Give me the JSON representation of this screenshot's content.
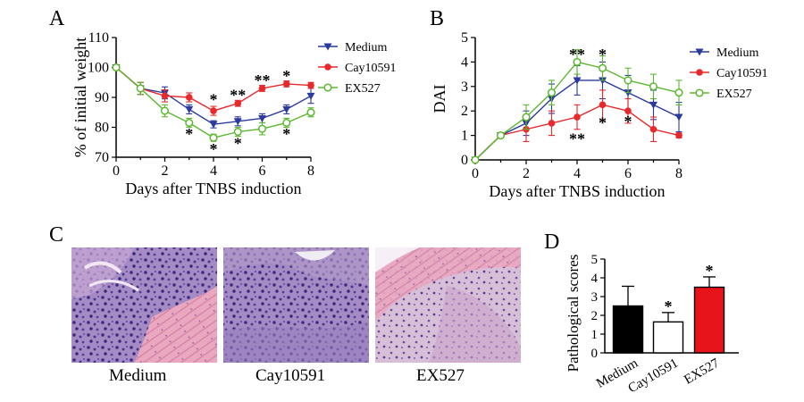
{
  "panels": {
    "A": "A",
    "B": "B",
    "C": "C",
    "D": "D"
  },
  "colors": {
    "medium": "#2b3a9e",
    "cay10591": "#e8282b",
    "ex527": "#5cb82f",
    "d_medium": "#000000",
    "d_cay": "#ffffff",
    "d_ex527": "#e8141c"
  },
  "chart_data": [
    {
      "id": "A",
      "type": "line",
      "xlabel": "Days after TNBS induction",
      "ylabel": "% of initial weight",
      "xlim": [
        0,
        8
      ],
      "ylim": [
        70,
        110
      ],
      "xticks": [
        0,
        2,
        4,
        6,
        8
      ],
      "yticks": [
        70,
        80,
        90,
        100,
        110
      ],
      "legend_position": "right",
      "series": [
        {
          "name": "Medium",
          "marker": "triangle-down",
          "x": [
            0,
            1,
            2,
            3,
            4,
            5,
            6,
            7,
            8
          ],
          "y": [
            100,
            93,
            91.5,
            86,
            81,
            82,
            83,
            86,
            90.5
          ],
          "err": [
            0,
            2,
            2,
            1.5,
            1.2,
            1.5,
            1.5,
            1.5,
            2.5
          ]
        },
        {
          "name": "Cay10591",
          "marker": "circle-filled",
          "x": [
            0,
            1,
            2,
            3,
            4,
            5,
            6,
            7,
            8
          ],
          "y": [
            100,
            93,
            90.5,
            90,
            85.5,
            88,
            93,
            94.5,
            94
          ],
          "err": [
            0,
            2,
            2,
            1.5,
            1.5,
            1,
            1,
            1,
            1
          ]
        },
        {
          "name": "EX527",
          "marker": "circle-open",
          "x": [
            0,
            1,
            2,
            3,
            4,
            5,
            6,
            7,
            8
          ],
          "y": [
            100,
            93,
            85.5,
            81.5,
            76.5,
            78.5,
            79.5,
            81.5,
            85
          ],
          "err": [
            0,
            2,
            2,
            1.5,
            1.2,
            1.5,
            2,
            1.5,
            1.5
          ]
        }
      ],
      "annotations": [
        {
          "x": 3,
          "y": 78,
          "text": "*"
        },
        {
          "x": 4,
          "y": 89.5,
          "text": "*"
        },
        {
          "x": 4,
          "y": 73,
          "text": "*"
        },
        {
          "x": 5,
          "y": 91,
          "text": "**"
        },
        {
          "x": 5,
          "y": 75,
          "text": "*"
        },
        {
          "x": 6,
          "y": 96,
          "text": "**"
        },
        {
          "x": 7,
          "y": 97.5,
          "text": "*"
        },
        {
          "x": 7,
          "y": 78,
          "text": "*"
        }
      ]
    },
    {
      "id": "B",
      "type": "line",
      "xlabel": "Days after TNBS induction",
      "ylabel": "DAI",
      "xlim": [
        0,
        8
      ],
      "ylim": [
        0,
        5
      ],
      "xticks": [
        0,
        2,
        4,
        6,
        8
      ],
      "yticks": [
        0,
        1,
        2,
        3,
        4,
        5
      ],
      "legend_position": "right",
      "series": [
        {
          "name": "Medium",
          "marker": "triangle-down",
          "x": [
            0,
            1,
            2,
            3,
            4,
            5,
            6,
            7,
            8
          ],
          "y": [
            0,
            1,
            1.5,
            2.5,
            3.25,
            3.25,
            2.75,
            2.25,
            1.75
          ],
          "err": [
            0,
            0.1,
            0.5,
            0.6,
            0.6,
            0.75,
            0.7,
            0.6,
            0.6
          ]
        },
        {
          "name": "Cay10591",
          "marker": "circle-filled",
          "x": [
            0,
            1,
            2,
            3,
            4,
            5,
            6,
            7,
            8
          ],
          "y": [
            0,
            1,
            1.25,
            1.5,
            1.75,
            2.25,
            2,
            1.25,
            1
          ],
          "err": [
            0,
            0.1,
            0.5,
            0.5,
            0.5,
            0.6,
            0.5,
            0.5,
            0.1
          ]
        },
        {
          "name": "EX527",
          "marker": "circle-open",
          "x": [
            0,
            1,
            2,
            3,
            4,
            5,
            6,
            7,
            8
          ],
          "y": [
            0,
            1,
            1.75,
            2.75,
            4,
            3.75,
            3.25,
            3,
            2.75
          ],
          "err": [
            0,
            0.1,
            0.5,
            0.5,
            0.5,
            0.5,
            0.5,
            0.5,
            0.5
          ]
        }
      ],
      "annotations": [
        {
          "x": 4,
          "y": 4.35,
          "text": "**"
        },
        {
          "x": 4,
          "y": 0.9,
          "text": "**"
        },
        {
          "x": 5,
          "y": 4.35,
          "text": "*"
        },
        {
          "x": 5,
          "y": 1.55,
          "text": "*"
        },
        {
          "x": 6,
          "y": 1.6,
          "text": "*"
        }
      ]
    },
    {
      "id": "D",
      "type": "bar",
      "ylabel": "Pathological scores",
      "ylim": [
        0,
        5
      ],
      "yticks": [
        0,
        1,
        2,
        3,
        4,
        5
      ],
      "categories": [
        "Medium",
        "Cay10591",
        "EX527"
      ],
      "values": [
        2.5,
        1.65,
        3.5
      ],
      "err": [
        1.05,
        0.5,
        0.55
      ],
      "annotations": [
        {
          "category": "Cay10591",
          "text": "*"
        },
        {
          "category": "EX527",
          "text": "*"
        }
      ]
    }
  ],
  "images": [
    {
      "caption": "Medium"
    },
    {
      "caption": "Cay10591"
    },
    {
      "caption": "EX527"
    }
  ]
}
